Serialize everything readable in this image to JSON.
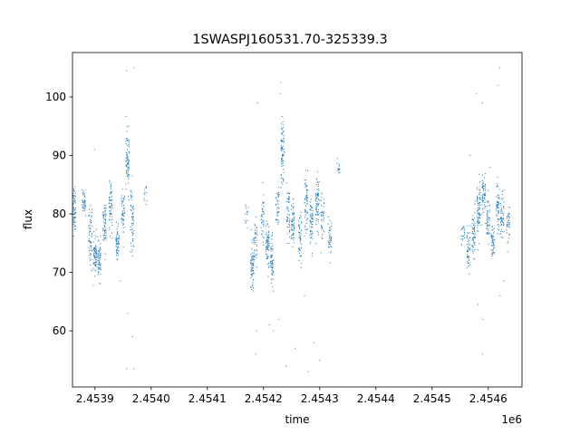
{
  "chart_data": {
    "type": "scatter",
    "title": "1SWASPJ160531.70-325339.3",
    "xlabel": "time",
    "ylabel": "flux",
    "x_offset_label": "1e6",
    "xlim": [
      2.45386,
      2.45466
    ],
    "ylim": [
      50.4,
      107.6
    ],
    "x_ticks": [
      2.4539,
      2.454,
      2.4541,
      2.4542,
      2.4543,
      2.4544,
      2.4545,
      2.4546
    ],
    "x_tick_labels": [
      "2.4539",
      "2.4540",
      "2.4541",
      "2.4542",
      "2.4543",
      "2.4544",
      "2.4545",
      "2.4546"
    ],
    "y_ticks": [
      60,
      70,
      80,
      90,
      100
    ],
    "y_tick_labels": [
      "60",
      "70",
      "80",
      "90",
      "100"
    ],
    "grid": false,
    "marker_color": "#1f77b4",
    "clusters": [
      {
        "x": 2.453863,
        "y": 81,
        "spread": 2.0,
        "n": 70
      },
      {
        "x": 2.45388,
        "y": 82,
        "spread": 1.0,
        "n": 40
      },
      {
        "x": 2.453892,
        "y": 76,
        "spread": 2.5,
        "n": 60
      },
      {
        "x": 2.4539,
        "y": 73,
        "spread": 1.5,
        "n": 70
      },
      {
        "x": 2.453908,
        "y": 72,
        "spread": 1.5,
        "n": 60
      },
      {
        "x": 2.453917,
        "y": 78,
        "spread": 2.0,
        "n": 60
      },
      {
        "x": 2.453928,
        "y": 81,
        "spread": 2.0,
        "n": 60
      },
      {
        "x": 2.45394,
        "y": 75,
        "spread": 1.5,
        "n": 60
      },
      {
        "x": 2.45395,
        "y": 80,
        "spread": 2.0,
        "n": 50
      },
      {
        "x": 2.453958,
        "y": 89,
        "spread": 2.5,
        "n": 80
      },
      {
        "x": 2.453966,
        "y": 79,
        "spread": 3.0,
        "n": 60
      },
      {
        "x": 2.45399,
        "y": 83,
        "spread": 1.0,
        "n": 12
      },
      {
        "x": 2.45417,
        "y": 80,
        "spread": 1.0,
        "n": 15
      },
      {
        "x": 2.45418,
        "y": 71,
        "spread": 2.0,
        "n": 70
      },
      {
        "x": 2.454186,
        "y": 75,
        "spread": 2.0,
        "n": 40
      },
      {
        "x": 2.454198,
        "y": 79,
        "spread": 2.5,
        "n": 40
      },
      {
        "x": 2.454207,
        "y": 75,
        "spread": 2.0,
        "n": 70
      },
      {
        "x": 2.454215,
        "y": 72,
        "spread": 2.0,
        "n": 60
      },
      {
        "x": 2.454225,
        "y": 81,
        "spread": 2.0,
        "n": 40
      },
      {
        "x": 2.454234,
        "y": 90,
        "spread": 3.0,
        "n": 80
      },
      {
        "x": 2.454244,
        "y": 80,
        "spread": 2.5,
        "n": 50
      },
      {
        "x": 2.454252,
        "y": 78,
        "spread": 2.0,
        "n": 60
      },
      {
        "x": 2.454265,
        "y": 76,
        "spread": 2.0,
        "n": 50
      },
      {
        "x": 2.454276,
        "y": 82,
        "spread": 2.5,
        "n": 60
      },
      {
        "x": 2.454285,
        "y": 78,
        "spread": 2.0,
        "n": 60
      },
      {
        "x": 2.454296,
        "y": 82,
        "spread": 2.5,
        "n": 70
      },
      {
        "x": 2.454305,
        "y": 80,
        "spread": 2.0,
        "n": 40
      },
      {
        "x": 2.454318,
        "y": 76,
        "spread": 1.5,
        "n": 40
      },
      {
        "x": 2.454333,
        "y": 88,
        "spread": 0.8,
        "n": 15
      },
      {
        "x": 2.454555,
        "y": 76,
        "spread": 1.0,
        "n": 20
      },
      {
        "x": 2.454565,
        "y": 74,
        "spread": 2.0,
        "n": 50
      },
      {
        "x": 2.454574,
        "y": 77,
        "spread": 2.0,
        "n": 60
      },
      {
        "x": 2.454583,
        "y": 80,
        "spread": 2.5,
        "n": 70
      },
      {
        "x": 2.454592,
        "y": 83,
        "spread": 2.0,
        "n": 60
      },
      {
        "x": 2.4546,
        "y": 79,
        "spread": 2.0,
        "n": 50
      },
      {
        "x": 2.454608,
        "y": 75,
        "spread": 1.5,
        "n": 50
      },
      {
        "x": 2.454617,
        "y": 81,
        "spread": 2.5,
        "n": 60
      },
      {
        "x": 2.454625,
        "y": 79,
        "spread": 2.0,
        "n": 50
      },
      {
        "x": 2.454635,
        "y": 78,
        "spread": 1.5,
        "n": 40
      }
    ],
    "outliers": [
      {
        "x": 2.453956,
        "y": 104.5
      },
      {
        "x": 2.453969,
        "y": 105
      },
      {
        "x": 2.453956,
        "y": 53.5
      },
      {
        "x": 2.453969,
        "y": 53.5
      },
      {
        "x": 2.453958,
        "y": 63
      },
      {
        "x": 2.453967,
        "y": 59
      },
      {
        "x": 2.45391,
        "y": 68
      },
      {
        "x": 2.453945,
        "y": 68.5
      },
      {
        "x": 2.453899,
        "y": 91
      },
      {
        "x": 2.454231,
        "y": 102.5
      },
      {
        "x": 2.45423,
        "y": 100.5
      },
      {
        "x": 2.45419,
        "y": 99
      },
      {
        "x": 2.454188,
        "y": 60
      },
      {
        "x": 2.454186,
        "y": 56
      },
      {
        "x": 2.45424,
        "y": 54
      },
      {
        "x": 2.454218,
        "y": 60
      },
      {
        "x": 2.454227,
        "y": 62
      },
      {
        "x": 2.454256,
        "y": 57
      },
      {
        "x": 2.45428,
        "y": 53
      },
      {
        "x": 2.45429,
        "y": 58
      },
      {
        "x": 2.454273,
        "y": 66
      },
      {
        "x": 2.4543,
        "y": 55
      },
      {
        "x": 2.45421,
        "y": 61
      },
      {
        "x": 2.45462,
        "y": 105
      },
      {
        "x": 2.454617,
        "y": 102
      },
      {
        "x": 2.454579,
        "y": 100.5
      },
      {
        "x": 2.45459,
        "y": 99
      },
      {
        "x": 2.45459,
        "y": 56
      },
      {
        "x": 2.454582,
        "y": 64.5
      },
      {
        "x": 2.45459,
        "y": 62
      },
      {
        "x": 2.454621,
        "y": 66
      },
      {
        "x": 2.454628,
        "y": 68.5
      },
      {
        "x": 2.454568,
        "y": 90
      },
      {
        "x": 2.454603,
        "y": 88
      }
    ]
  }
}
